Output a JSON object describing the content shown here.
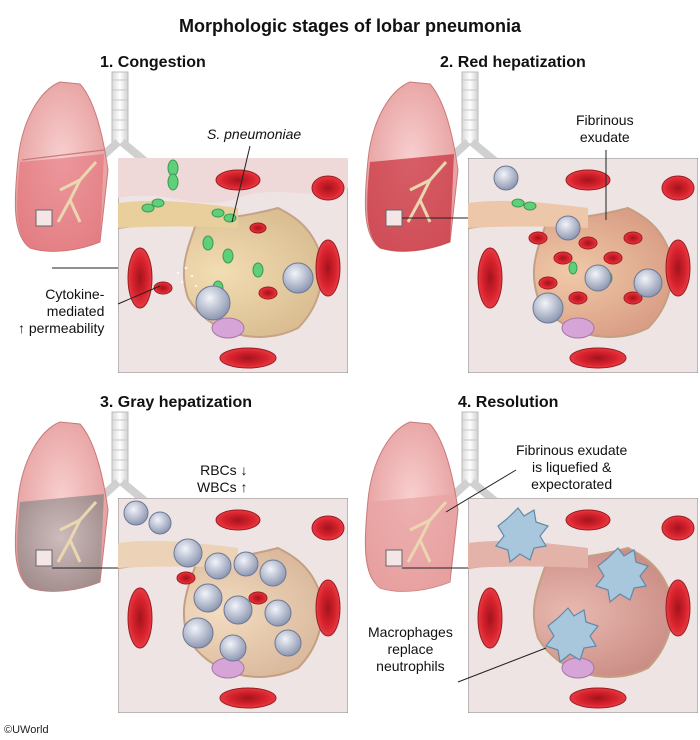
{
  "title": "Morphologic stages of lobar pneumonia",
  "panels": [
    {
      "title": "1. Congestion",
      "labels": {
        "organism": "S. pneumoniae",
        "cytokine": [
          "Cytokine-",
          "mediated",
          "↑ permeability"
        ]
      }
    },
    {
      "title": "2. Red hepatization",
      "labels": {
        "exudate": [
          "Fibrinous",
          "exudate"
        ]
      }
    },
    {
      "title": "3. Gray hepatization",
      "labels": {
        "rbc": "RBCs ↓",
        "wbc": "WBCs ↑"
      }
    },
    {
      "title": "4. Resolution",
      "labels": {
        "liquefied": [
          "Fibrinous exudate",
          "is liquefied &",
          "expectorated"
        ],
        "macrophages": [
          "Macrophages",
          "replace",
          "neutrophils"
        ]
      }
    }
  ],
  "copyright": "©UWorld",
  "colors": {
    "lung": "#f2b3b3",
    "lung_dark": "#e08a8a",
    "tissue": "#f3e6e6",
    "alveolus": "#f6d9c4",
    "rbc": "#d9232e",
    "bacteria": "#5fcf7a",
    "neutrophil": "#b9c2d6",
    "macrophage": "#a9c7dc",
    "gray_lung": "#b9a6a6"
  }
}
